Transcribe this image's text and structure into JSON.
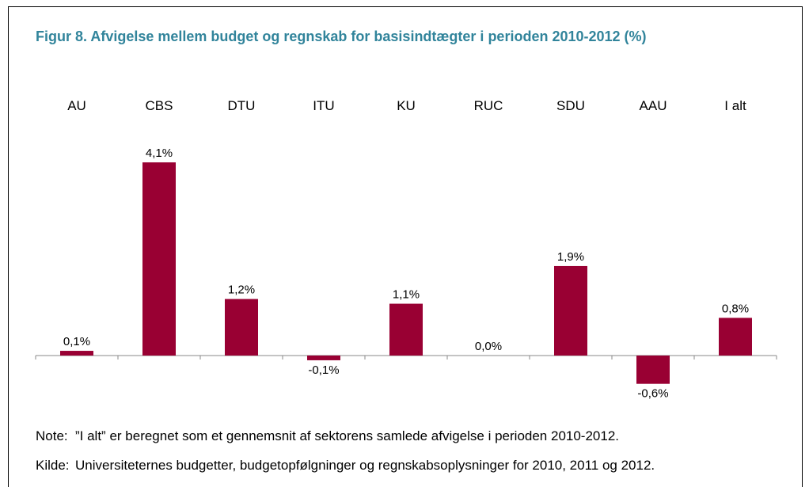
{
  "chart_data": {
    "type": "bar",
    "title": "Figur 8. Afvigelse mellem budget og regnskab for basisindtægter i perioden 2010-2012 (%)",
    "categories": [
      "AU",
      "CBS",
      "DTU",
      "ITU",
      "KU",
      "RUC",
      "SDU",
      "AAU",
      "I alt"
    ],
    "values": [
      0.1,
      4.1,
      1.2,
      -0.1,
      1.1,
      0.0,
      1.9,
      -0.6,
      0.8
    ],
    "value_labels": [
      "0,1%",
      "4,1%",
      "1,2%",
      "-0,1%",
      "1,1%",
      "0,0%",
      "1,9%",
      "-0,6%",
      "0,8%"
    ],
    "color": "#990033",
    "notes": [
      {
        "label": "Note:",
        "text": "”I alt” er beregnet som et gennemsnit af sektorens samlede afvigelse i perioden 2010-2012."
      },
      {
        "label": "Kilde:",
        "text": "Universiteternes budgetter, budgetopfølgninger og regnskabsoplysninger for 2010, 2011 og 2012."
      }
    ]
  }
}
